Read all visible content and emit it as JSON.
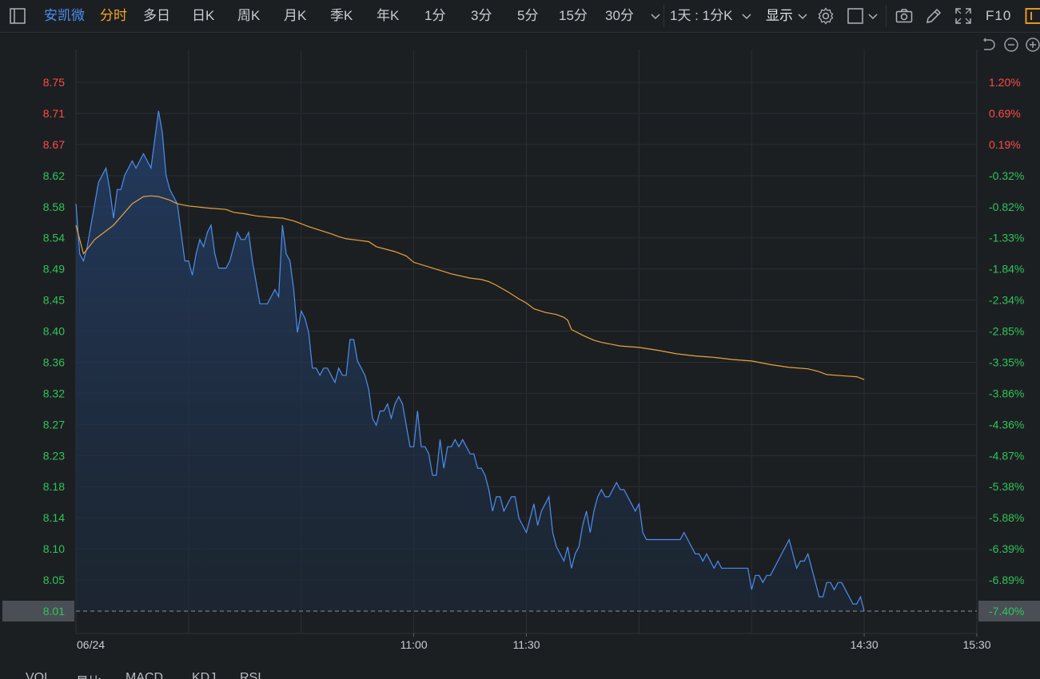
{
  "toolbar": {
    "stock_name": "安凯微",
    "tabs": [
      "分时",
      "多日",
      "日K",
      "周K",
      "月K",
      "季K",
      "年K",
      "1分",
      "3分",
      "5分",
      "15分",
      "30分"
    ],
    "active_tab": "分时",
    "period_select": "1天 : 1分K",
    "display_label": "显示",
    "f10_label": "F10"
  },
  "chart_data": {
    "type": "line",
    "title": "",
    "x_axis": {
      "date_label": "06/24",
      "tick_labels": [
        "11:00",
        "11:30",
        "14:30",
        "15:30"
      ]
    },
    "y_axis_left": {
      "ticks": [
        "8.75",
        "8.71",
        "8.67",
        "8.62",
        "8.58",
        "8.54",
        "8.49",
        "8.45",
        "8.40",
        "8.36",
        "8.32",
        "8.27",
        "8.23",
        "8.18",
        "8.14",
        "8.10",
        "8.05",
        "8.01"
      ],
      "range": [
        8.01,
        8.75
      ]
    },
    "y_axis_right": {
      "ticks": [
        "1.20%",
        "0.69%",
        "0.19%",
        "-0.32%",
        "-0.82%",
        "-1.33%",
        "-1.84%",
        "-2.34%",
        "-2.85%",
        "-3.35%",
        "-3.86%",
        "-4.36%",
        "-4.87%",
        "-5.38%",
        "-5.88%",
        "-6.39%",
        "-6.89%",
        "-7.40%"
      ]
    },
    "reference_price": 8.651,
    "current_price": "8.01",
    "current_pct": "-7.40%",
    "session_minutes": 240,
    "x_axis_minutes": [
      0,
      90,
      120,
      210,
      240
    ],
    "series": [
      {
        "name": "价格",
        "color": "#4d8ef0",
        "points": [
          [
            0,
            8.58
          ],
          [
            1,
            8.51
          ],
          [
            2,
            8.5
          ],
          [
            3,
            8.52
          ],
          [
            4,
            8.55
          ],
          [
            5,
            8.58
          ],
          [
            6,
            8.61
          ],
          [
            7,
            8.62
          ],
          [
            8,
            8.63
          ],
          [
            9,
            8.6
          ],
          [
            10,
            8.56
          ],
          [
            11,
            8.6
          ],
          [
            12,
            8.6
          ],
          [
            13,
            8.62
          ],
          [
            14,
            8.63
          ],
          [
            15,
            8.64
          ],
          [
            16,
            8.63
          ],
          [
            17,
            8.64
          ],
          [
            18,
            8.65
          ],
          [
            19,
            8.64
          ],
          [
            20,
            8.63
          ],
          [
            21,
            8.67
          ],
          [
            22,
            8.71
          ],
          [
            23,
            8.68
          ],
          [
            24,
            8.62
          ],
          [
            25,
            8.6
          ],
          [
            26,
            8.59
          ],
          [
            27,
            8.58
          ],
          [
            28,
            8.54
          ],
          [
            29,
            8.5
          ],
          [
            30,
            8.5
          ],
          [
            31,
            8.48
          ],
          [
            32,
            8.51
          ],
          [
            33,
            8.53
          ],
          [
            34,
            8.52
          ],
          [
            35,
            8.54
          ],
          [
            36,
            8.55
          ],
          [
            37,
            8.51
          ],
          [
            38,
            8.49
          ],
          [
            39,
            8.49
          ],
          [
            40,
            8.49
          ],
          [
            41,
            8.5
          ],
          [
            42,
            8.52
          ],
          [
            43,
            8.54
          ],
          [
            44,
            8.53
          ],
          [
            45,
            8.53
          ],
          [
            46,
            8.54
          ],
          [
            47,
            8.5
          ],
          [
            48,
            8.47
          ],
          [
            49,
            8.44
          ],
          [
            50,
            8.44
          ],
          [
            51,
            8.44
          ],
          [
            52,
            8.45
          ],
          [
            53,
            8.46
          ],
          [
            54,
            8.45
          ],
          [
            55,
            8.55
          ],
          [
            56,
            8.51
          ],
          [
            57,
            8.5
          ],
          [
            58,
            8.46
          ],
          [
            59,
            8.4
          ],
          [
            60,
            8.43
          ],
          [
            61,
            8.42
          ],
          [
            62,
            8.4
          ],
          [
            63,
            8.35
          ],
          [
            64,
            8.35
          ],
          [
            65,
            8.34
          ],
          [
            66,
            8.35
          ],
          [
            67,
            8.35
          ],
          [
            68,
            8.34
          ],
          [
            69,
            8.33
          ],
          [
            70,
            8.35
          ],
          [
            71,
            8.34
          ],
          [
            72,
            8.34
          ],
          [
            73,
            8.39
          ],
          [
            74,
            8.39
          ],
          [
            75,
            8.36
          ],
          [
            76,
            8.35
          ],
          [
            77,
            8.34
          ],
          [
            78,
            8.32
          ],
          [
            79,
            8.28
          ],
          [
            80,
            8.27
          ],
          [
            81,
            8.29
          ],
          [
            82,
            8.29
          ],
          [
            83,
            8.3
          ],
          [
            84,
            8.28
          ],
          [
            85,
            8.3
          ],
          [
            86,
            8.31
          ],
          [
            87,
            8.3
          ],
          [
            88,
            8.27
          ],
          [
            89,
            8.24
          ],
          [
            90,
            8.24
          ],
          [
            91,
            8.29
          ],
          [
            92,
            8.24
          ],
          [
            93,
            8.24
          ],
          [
            94,
            8.23
          ],
          [
            95,
            8.2
          ],
          [
            96,
            8.2
          ],
          [
            97,
            8.25
          ],
          [
            98,
            8.21
          ],
          [
            99,
            8.24
          ],
          [
            100,
            8.24
          ],
          [
            101,
            8.25
          ],
          [
            102,
            8.24
          ],
          [
            103,
            8.25
          ],
          [
            104,
            8.24
          ],
          [
            105,
            8.23
          ],
          [
            106,
            8.23
          ],
          [
            107,
            8.21
          ],
          [
            108,
            8.21
          ],
          [
            109,
            8.2
          ],
          [
            110,
            8.18
          ],
          [
            111,
            8.15
          ],
          [
            112,
            8.17
          ],
          [
            113,
            8.17
          ],
          [
            114,
            8.15
          ],
          [
            115,
            8.16
          ],
          [
            116,
            8.17
          ],
          [
            117,
            8.17
          ],
          [
            118,
            8.14
          ],
          [
            119,
            8.13
          ],
          [
            120,
            8.12
          ],
          [
            121,
            8.14
          ],
          [
            122,
            8.16
          ],
          [
            123,
            8.13
          ],
          [
            124,
            8.15
          ],
          [
            125,
            8.16
          ],
          [
            126,
            8.17
          ],
          [
            127,
            8.12
          ],
          [
            128,
            8.1
          ],
          [
            129,
            8.09
          ],
          [
            130,
            8.08
          ],
          [
            131,
            8.1
          ],
          [
            132,
            8.07
          ],
          [
            133,
            8.09
          ],
          [
            134,
            8.1
          ],
          [
            135,
            8.13
          ],
          [
            136,
            8.15
          ],
          [
            137,
            8.12
          ],
          [
            138,
            8.15
          ],
          [
            139,
            8.17
          ],
          [
            140,
            8.18
          ],
          [
            141,
            8.17
          ],
          [
            142,
            8.17
          ],
          [
            143,
            8.18
          ],
          [
            144,
            8.19
          ],
          [
            145,
            8.18
          ],
          [
            146,
            8.18
          ],
          [
            147,
            8.17
          ],
          [
            148,
            8.16
          ],
          [
            149,
            8.15
          ],
          [
            150,
            8.16
          ],
          [
            151,
            8.12
          ],
          [
            152,
            8.11
          ],
          [
            153,
            8.11
          ],
          [
            154,
            8.11
          ],
          [
            155,
            8.11
          ],
          [
            156,
            8.11
          ],
          [
            157,
            8.11
          ],
          [
            158,
            8.11
          ],
          [
            159,
            8.11
          ],
          [
            160,
            8.11
          ],
          [
            161,
            8.11
          ],
          [
            162,
            8.12
          ],
          [
            163,
            8.11
          ],
          [
            164,
            8.1
          ],
          [
            165,
            8.09
          ],
          [
            166,
            8.09
          ],
          [
            167,
            8.08
          ],
          [
            168,
            8.09
          ],
          [
            169,
            8.08
          ],
          [
            170,
            8.07
          ],
          [
            171,
            8.08
          ],
          [
            172,
            8.07
          ],
          [
            173,
            8.07
          ],
          [
            174,
            8.07
          ],
          [
            175,
            8.07
          ],
          [
            176,
            8.07
          ],
          [
            177,
            8.07
          ],
          [
            178,
            8.07
          ],
          [
            179,
            8.07
          ],
          [
            180,
            8.04
          ],
          [
            181,
            8.06
          ],
          [
            182,
            8.06
          ],
          [
            183,
            8.05
          ],
          [
            184,
            8.06
          ],
          [
            185,
            8.06
          ],
          [
            186,
            8.07
          ],
          [
            187,
            8.08
          ],
          [
            188,
            8.09
          ],
          [
            189,
            8.1
          ],
          [
            190,
            8.11
          ],
          [
            191,
            8.09
          ],
          [
            192,
            8.07
          ],
          [
            193,
            8.08
          ],
          [
            194,
            8.08
          ],
          [
            195,
            8.09
          ],
          [
            196,
            8.07
          ],
          [
            197,
            8.05
          ],
          [
            198,
            8.03
          ],
          [
            199,
            8.03
          ],
          [
            200,
            8.05
          ],
          [
            201,
            8.05
          ],
          [
            202,
            8.04
          ],
          [
            203,
            8.05
          ],
          [
            204,
            8.05
          ],
          [
            205,
            8.04
          ],
          [
            206,
            8.03
          ],
          [
            207,
            8.02
          ],
          [
            208,
            8.02
          ],
          [
            209,
            8.03
          ],
          [
            210,
            8.01
          ]
        ]
      },
      {
        "name": "均价",
        "color": "#e7a43b",
        "points": [
          [
            0,
            8.55
          ],
          [
            2,
            8.51
          ],
          [
            5,
            8.53
          ],
          [
            10,
            8.55
          ],
          [
            15,
            8.58
          ],
          [
            18,
            8.59
          ],
          [
            20,
            8.591
          ],
          [
            22,
            8.59
          ],
          [
            25,
            8.585
          ],
          [
            27,
            8.58
          ],
          [
            30,
            8.577
          ],
          [
            35,
            8.574
          ],
          [
            40,
            8.572
          ],
          [
            42,
            8.568
          ],
          [
            45,
            8.566
          ],
          [
            48,
            8.563
          ],
          [
            50,
            8.562
          ],
          [
            52,
            8.561
          ],
          [
            55,
            8.56
          ],
          [
            58,
            8.556
          ],
          [
            60,
            8.552
          ],
          [
            62,
            8.548
          ],
          [
            65,
            8.543
          ],
          [
            68,
            8.538
          ],
          [
            70,
            8.534
          ],
          [
            72,
            8.531
          ],
          [
            75,
            8.529
          ],
          [
            78,
            8.527
          ],
          [
            80,
            8.52
          ],
          [
            85,
            8.513
          ],
          [
            88,
            8.507
          ],
          [
            90,
            8.498
          ],
          [
            95,
            8.49
          ],
          [
            100,
            8.482
          ],
          [
            105,
            8.476
          ],
          [
            108,
            8.474
          ],
          [
            110,
            8.471
          ],
          [
            112,
            8.466
          ],
          [
            115,
            8.457
          ],
          [
            118,
            8.447
          ],
          [
            120,
            8.441
          ],
          [
            122,
            8.433
          ],
          [
            125,
            8.428
          ],
          [
            128,
            8.425
          ],
          [
            130,
            8.421
          ],
          [
            131,
            8.417
          ],
          [
            132,
            8.404
          ],
          [
            135,
            8.396
          ],
          [
            138,
            8.389
          ],
          [
            140,
            8.386
          ],
          [
            145,
            8.381
          ],
          [
            150,
            8.379
          ],
          [
            155,
            8.375
          ],
          [
            160,
            8.37
          ],
          [
            165,
            8.367
          ],
          [
            170,
            8.365
          ],
          [
            175,
            8.362
          ],
          [
            180,
            8.36
          ],
          [
            185,
            8.355
          ],
          [
            190,
            8.351
          ],
          [
            195,
            8.349
          ],
          [
            198,
            8.345
          ],
          [
            200,
            8.341
          ],
          [
            205,
            8.339
          ],
          [
            208,
            8.338
          ],
          [
            210,
            8.334
          ]
        ]
      }
    ]
  },
  "bottom_tabs": [
    "VOL",
    "量比",
    "MACD",
    "KDJ",
    "RSI"
  ],
  "colors": {
    "background": "#1c1f22",
    "grid": "#2a2e33",
    "up": "#ff4a4a",
    "down": "#2fc45a",
    "active_tab": "#f5a623",
    "stock_name": "#4d8ef0",
    "price_line": "#4d8ef0",
    "avg_line": "#e7a43b"
  }
}
